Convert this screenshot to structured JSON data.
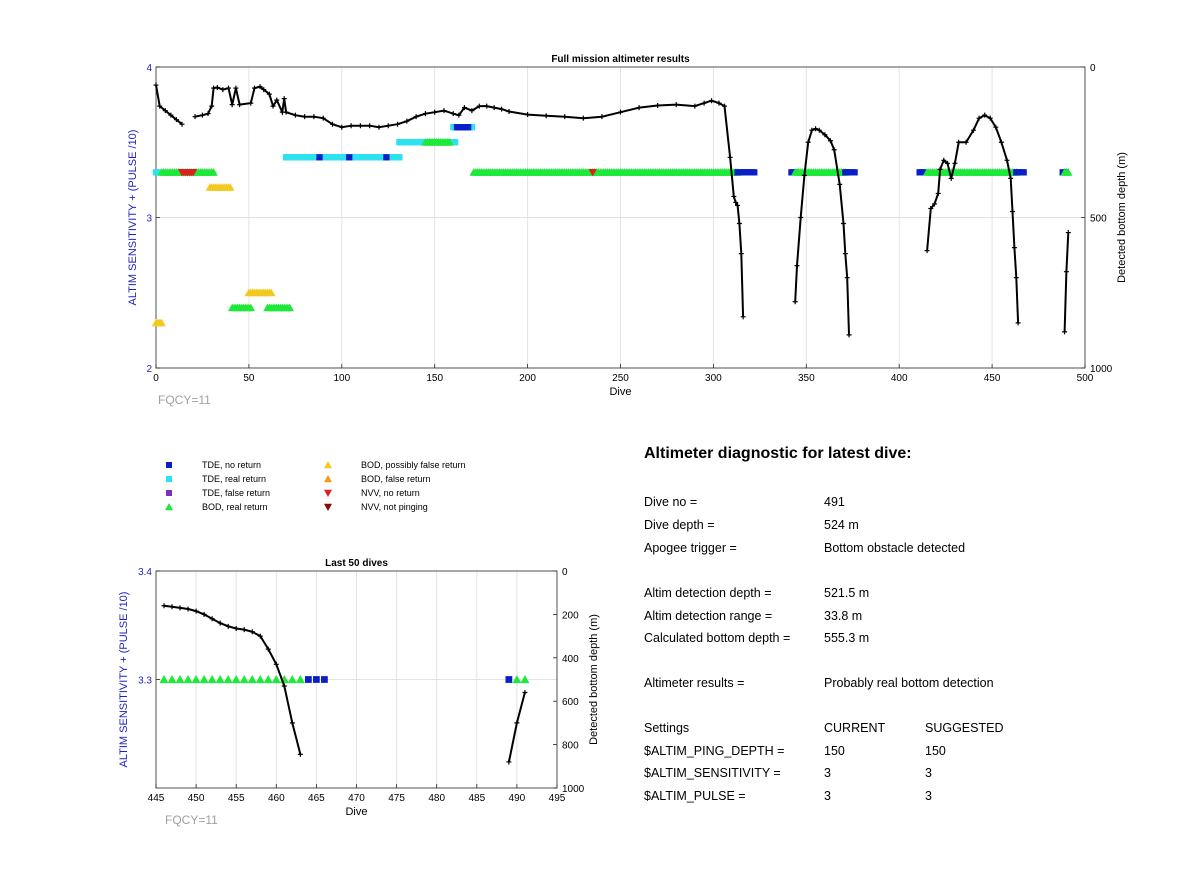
{
  "colors": {
    "tde_no": "#0a1fc8",
    "tde_real": "#2de2f0",
    "tde_false": "#7b2fbf",
    "bod_real": "#1ee83a",
    "bod_possibly_false": "#f3c81f",
    "bod_false": "#f39a1a",
    "nvv_no": "#e02020",
    "nvv_not_pinging": "#8b0a0a",
    "depth_line": "#000000",
    "left_axis": "#1f1fbf",
    "fqcy": "#a0a0a0"
  },
  "legend": {
    "items": [
      {
        "label": "TDE, no return",
        "shape": "square",
        "color_key": "tde_no"
      },
      {
        "label": "TDE, real return",
        "shape": "square",
        "color_key": "tde_real"
      },
      {
        "label": "TDE, false return",
        "shape": "square",
        "color_key": "tde_false"
      },
      {
        "label": "BOD, real return",
        "shape": "triangle-up",
        "color_key": "bod_real"
      },
      {
        "label": "BOD, possibly false return",
        "shape": "triangle-up",
        "color_key": "bod_possibly_false"
      },
      {
        "label": "BOD, false return",
        "shape": "triangle-up",
        "color_key": "bod_false"
      },
      {
        "label": "NVV, no return",
        "shape": "triangle-down",
        "color_key": "nvv_no"
      },
      {
        "label": "NVV, not pinging",
        "shape": "triangle-down",
        "color_key": "nvv_not_pinging"
      }
    ]
  },
  "chart_data": [
    {
      "type": "scatter",
      "title": "Full mission altimeter results",
      "xlabel": "Dive",
      "ylabel": "ALTIM SENSITIVITY + (PULSE /10)",
      "y2label": "Detected bottom depth (m)",
      "xlim": [
        0,
        500
      ],
      "ylim": [
        2,
        4
      ],
      "y2lim": [
        0,
        1000
      ],
      "y2_reversed": true,
      "xticks": [
        0,
        50,
        100,
        150,
        200,
        250,
        300,
        350,
        400,
        450,
        500
      ],
      "yticks": [
        2,
        3,
        4
      ],
      "y2ticks": [
        0,
        500,
        1000
      ],
      "grid": true,
      "annotation": "FQCY=11",
      "marker_runs": [
        {
          "category": "tde_real",
          "shape": "square",
          "x": [
            0,
            1
          ],
          "y": 3.3
        },
        {
          "category": "bod_real",
          "shape": "triangle-up",
          "x": [
            3,
            31
          ],
          "y": 3.3
        },
        {
          "category": "nvv_no",
          "shape": "triangle-down",
          "x": [
            14,
            20
          ],
          "y": 3.3
        },
        {
          "category": "bod_possibly_false",
          "shape": "triangle-up",
          "x": [
            29,
            40
          ],
          "y": 3.2
        },
        {
          "category": "bod_possibly_false",
          "shape": "triangle-up",
          "x": [
            0,
            3
          ],
          "y": 2.3
        },
        {
          "category": "bod_real",
          "shape": "triangle-up",
          "x": [
            41,
            51
          ],
          "y": 2.4
        },
        {
          "category": "bod_possibly_false",
          "shape": "triangle-up",
          "x": [
            50,
            62
          ],
          "y": 2.5
        },
        {
          "category": "bod_real",
          "shape": "triangle-up",
          "x": [
            60,
            72
          ],
          "y": 2.4
        },
        {
          "category": "tde_real",
          "shape": "square",
          "x": [
            70,
            131
          ],
          "y": 3.4
        },
        {
          "category": "tde_no",
          "shape": "square",
          "x": [
            88,
            88
          ],
          "y": 3.4
        },
        {
          "category": "tde_no",
          "shape": "square",
          "x": [
            104,
            104
          ],
          "y": 3.4
        },
        {
          "category": "tde_no",
          "shape": "square",
          "x": [
            124,
            124
          ],
          "y": 3.4
        },
        {
          "category": "tde_real",
          "shape": "square",
          "x": [
            131,
            161
          ],
          "y": 3.5
        },
        {
          "category": "bod_real",
          "shape": "triangle-up",
          "x": [
            145,
            158
          ],
          "y": 3.5
        },
        {
          "category": "tde_real",
          "shape": "square",
          "x": [
            160,
            170
          ],
          "y": 3.6
        },
        {
          "category": "tde_no",
          "shape": "square",
          "x": [
            162,
            168
          ],
          "y": 3.6
        },
        {
          "category": "bod_real",
          "shape": "triangle-up",
          "x": [
            171,
            313
          ],
          "y": 3.3
        },
        {
          "category": "nvv_no",
          "shape": "triangle-down",
          "x": [
            235,
            235
          ],
          "y": 3.3
        },
        {
          "category": "tde_no",
          "shape": "square",
          "x": [
            313,
            322
          ],
          "y": 3.3
        },
        {
          "category": "tde_no",
          "shape": "square",
          "x": [
            342,
            344
          ],
          "y": 3.3
        },
        {
          "category": "bod_real",
          "shape": "triangle-up",
          "x": [
            344,
            371
          ],
          "y": 3.3
        },
        {
          "category": "tde_no",
          "shape": "square",
          "x": [
            371,
            376
          ],
          "y": 3.3
        },
        {
          "category": "tde_no",
          "shape": "square",
          "x": [
            411,
            413
          ],
          "y": 3.3
        },
        {
          "category": "bod_real",
          "shape": "triangle-up",
          "x": [
            415,
            463
          ],
          "y": 3.3
        },
        {
          "category": "tde_no",
          "shape": "square",
          "x": [
            463,
            467
          ],
          "y": 3.3
        },
        {
          "category": "tde_no",
          "shape": "square",
          "x": [
            488,
            489
          ],
          "y": 3.3
        },
        {
          "category": "bod_real",
          "shape": "triangle-up",
          "x": [
            489,
            491
          ],
          "y": 3.3
        }
      ],
      "depth_series": [
        [
          [
            0,
            60
          ],
          [
            2,
            130
          ],
          [
            5,
            145
          ],
          [
            8,
            160
          ],
          [
            11,
            175
          ],
          [
            14,
            190
          ]
        ],
        [
          [
            21,
            165
          ],
          [
            25,
            160
          ],
          [
            28,
            155
          ],
          [
            30,
            130
          ],
          [
            31,
            70
          ],
          [
            33,
            68
          ],
          [
            36,
            75
          ],
          [
            39,
            70
          ],
          [
            41,
            125
          ],
          [
            43,
            70
          ],
          [
            45,
            125
          ],
          [
            51,
            120
          ],
          [
            53,
            70
          ],
          [
            56,
            65
          ],
          [
            58,
            75
          ],
          [
            61,
            90
          ],
          [
            63,
            130
          ],
          [
            65,
            110
          ],
          [
            68,
            150
          ],
          [
            69,
            105
          ],
          [
            70,
            150
          ],
          [
            75,
            160
          ],
          [
            80,
            165
          ],
          [
            85,
            165
          ],
          [
            90,
            170
          ],
          [
            95,
            190
          ],
          [
            100,
            200
          ],
          [
            105,
            195
          ],
          [
            110,
            195
          ],
          [
            115,
            195
          ],
          [
            120,
            200
          ],
          [
            125,
            195
          ],
          [
            130,
            190
          ],
          [
            135,
            180
          ],
          [
            140,
            165
          ],
          [
            145,
            155
          ],
          [
            150,
            150
          ],
          [
            155,
            145
          ],
          [
            160,
            155
          ],
          [
            163,
            160
          ],
          [
            166,
            135
          ],
          [
            170,
            145
          ],
          [
            174,
            130
          ],
          [
            178,
            130
          ],
          [
            182,
            135
          ],
          [
            186,
            140
          ],
          [
            190,
            148
          ],
          [
            200,
            158
          ],
          [
            210,
            162
          ],
          [
            220,
            165
          ],
          [
            230,
            170
          ],
          [
            240,
            165
          ],
          [
            250,
            150
          ],
          [
            260,
            135
          ],
          [
            270,
            128
          ],
          [
            280,
            125
          ],
          [
            290,
            130
          ],
          [
            295,
            120
          ],
          [
            299,
            112
          ],
          [
            303,
            120
          ],
          [
            306,
            130
          ],
          [
            309,
            300
          ],
          [
            311,
            430
          ],
          [
            312,
            450
          ],
          [
            313,
            460
          ],
          [
            314,
            520
          ],
          [
            315,
            620
          ],
          [
            316,
            830
          ]
        ],
        [
          [
            344,
            780
          ],
          [
            345,
            660
          ],
          [
            347,
            500
          ],
          [
            349,
            360
          ],
          [
            351,
            250
          ],
          [
            353,
            210
          ],
          [
            355,
            205
          ],
          [
            357,
            210
          ],
          [
            360,
            225
          ],
          [
            363,
            245
          ],
          [
            365,
            275
          ],
          [
            368,
            390
          ],
          [
            370,
            520
          ],
          [
            371,
            620
          ],
          [
            372,
            700
          ],
          [
            373,
            890
          ]
        ],
        [
          [
            415,
            610
          ],
          [
            417,
            470
          ],
          [
            419,
            455
          ],
          [
            421,
            420
          ],
          [
            422,
            340
          ],
          [
            424,
            310
          ],
          [
            426,
            320
          ],
          [
            428,
            370
          ],
          [
            430,
            320
          ],
          [
            432,
            250
          ],
          [
            436,
            250
          ],
          [
            440,
            210
          ],
          [
            443,
            170
          ],
          [
            446,
            160
          ],
          [
            449,
            170
          ],
          [
            452,
            200
          ],
          [
            455,
            250
          ],
          [
            458,
            310
          ],
          [
            460,
            370
          ],
          [
            461,
            480
          ],
          [
            462,
            600
          ],
          [
            463,
            700
          ],
          [
            464,
            850
          ]
        ],
        [
          [
            489,
            880
          ],
          [
            490,
            680
          ],
          [
            491,
            550
          ]
        ]
      ]
    },
    {
      "type": "scatter",
      "title": "Last 50 dives",
      "xlabel": "Dive",
      "ylabel": "ALTIM SENSITIVITY + (PULSE /10)",
      "y2label": "Detected bottom depth (m)",
      "xlim": [
        445,
        495
      ],
      "ylim": [
        3.2,
        3.4
      ],
      "y2lim": [
        0,
        1000
      ],
      "y2_reversed": true,
      "xticks": [
        445,
        450,
        455,
        460,
        465,
        470,
        475,
        480,
        485,
        490,
        495
      ],
      "yticks": [
        3.3,
        3.4
      ],
      "y2ticks": [
        0,
        200,
        400,
        600,
        800,
        1000
      ],
      "grid": true,
      "annotation": "FQCY=11",
      "markers": [
        {
          "category": "bod_real",
          "shape": "triangle-up",
          "x": [
            446,
            447,
            448,
            449,
            450,
            451,
            452,
            453,
            454,
            455,
            456,
            457,
            458,
            459,
            460,
            461,
            462,
            463
          ],
          "y": 3.3
        },
        {
          "category": "tde_no",
          "shape": "square",
          "x": [
            464,
            465,
            466
          ],
          "y": 3.3
        },
        {
          "category": "tde_no",
          "shape": "square",
          "x": [
            489
          ],
          "y": 3.3
        },
        {
          "category": "bod_real",
          "shape": "triangle-up",
          "x": [
            490,
            491
          ],
          "y": 3.3
        }
      ],
      "depth_series": [
        [
          [
            446,
            160
          ],
          [
            447,
            165
          ],
          [
            448,
            170
          ],
          [
            449,
            175
          ],
          [
            450,
            185
          ],
          [
            451,
            200
          ],
          [
            452,
            220
          ],
          [
            453,
            240
          ],
          [
            454,
            255
          ],
          [
            455,
            265
          ],
          [
            456,
            270
          ],
          [
            457,
            280
          ],
          [
            458,
            300
          ],
          [
            459,
            360
          ],
          [
            460,
            430
          ],
          [
            461,
            530
          ],
          [
            462,
            700
          ],
          [
            463,
            845
          ]
        ],
        [
          [
            489,
            880
          ],
          [
            490,
            700
          ],
          [
            491,
            560
          ]
        ]
      ]
    }
  ],
  "diagnostic": {
    "title": "Altimeter diagnostic for latest dive:",
    "rows": [
      {
        "label": "Dive no =",
        "value": "491"
      },
      {
        "label": "Dive depth =",
        "value": "524 m"
      },
      {
        "label": "Apogee trigger =",
        "value": "Bottom obstacle detected"
      },
      {
        "label": "Altim detection depth =",
        "value": "521.5 m"
      },
      {
        "label": "Altim detection range =",
        "value": "33.8 m"
      },
      {
        "label": "Calculated bottom depth =",
        "value": "555.3 m"
      },
      {
        "label": "Altimeter results =",
        "value": "Probably real bottom detection"
      }
    ],
    "settings": {
      "header": {
        "label": "Settings",
        "current": "CURRENT",
        "suggested": "SUGGESTED"
      },
      "rows": [
        {
          "label": "$ALTIM_PING_DEPTH =",
          "current": "150",
          "suggested": "150"
        },
        {
          "label": "$ALTIM_SENSITIVITY =",
          "current": "3",
          "suggested": "3"
        },
        {
          "label": "$ALTIM_PULSE =",
          "current": "3",
          "suggested": "3"
        }
      ]
    }
  }
}
